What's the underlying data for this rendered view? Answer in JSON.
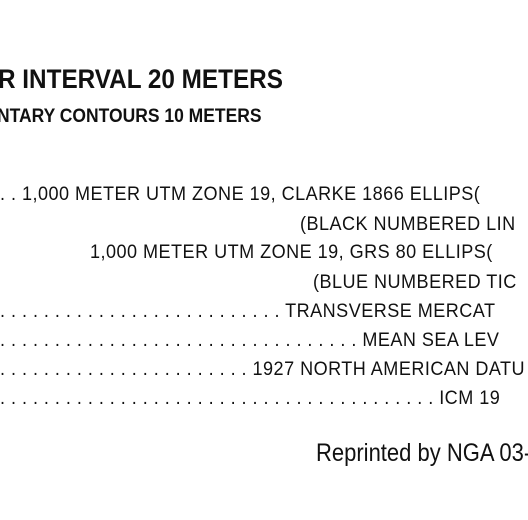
{
  "marginalia": {
    "contour_interval": "R INTERVAL 20 METERS",
    "supplementary_contours": "NTARY CONTOURS 10 METERS",
    "grid_clarke": ". . 1,000 METER UTM ZONE 19, CLARKE 1866 ELLIPS(",
    "grid_clarke_note": "(BLACK NUMBERED LIN",
    "grid_grs": "1,000 METER UTM ZONE 19, GRS 80 ELLIPS(",
    "grid_grs_note": "(BLUE NUMBERED TIC",
    "projection": ". . . . . . . . . . . . . . . . . . . . . . . . . . TRANSVERSE MERCAT",
    "vertical_datum": ". . . . . . . . . . . . . . . . . . . . . . . . . . . . . . . . . MEAN SEA LEV",
    "horizontal_datum": ". . . . . . . . . . . . . . . . . . . . . . . 1927 NORTH AMERICAN DATU",
    "icm": ". . . . . . . . . . . . . . . . . . . . . . . . . . . . . . . . . . . . . . . . ICM 19",
    "reprint": "Reprinted by NGA 03-"
  }
}
